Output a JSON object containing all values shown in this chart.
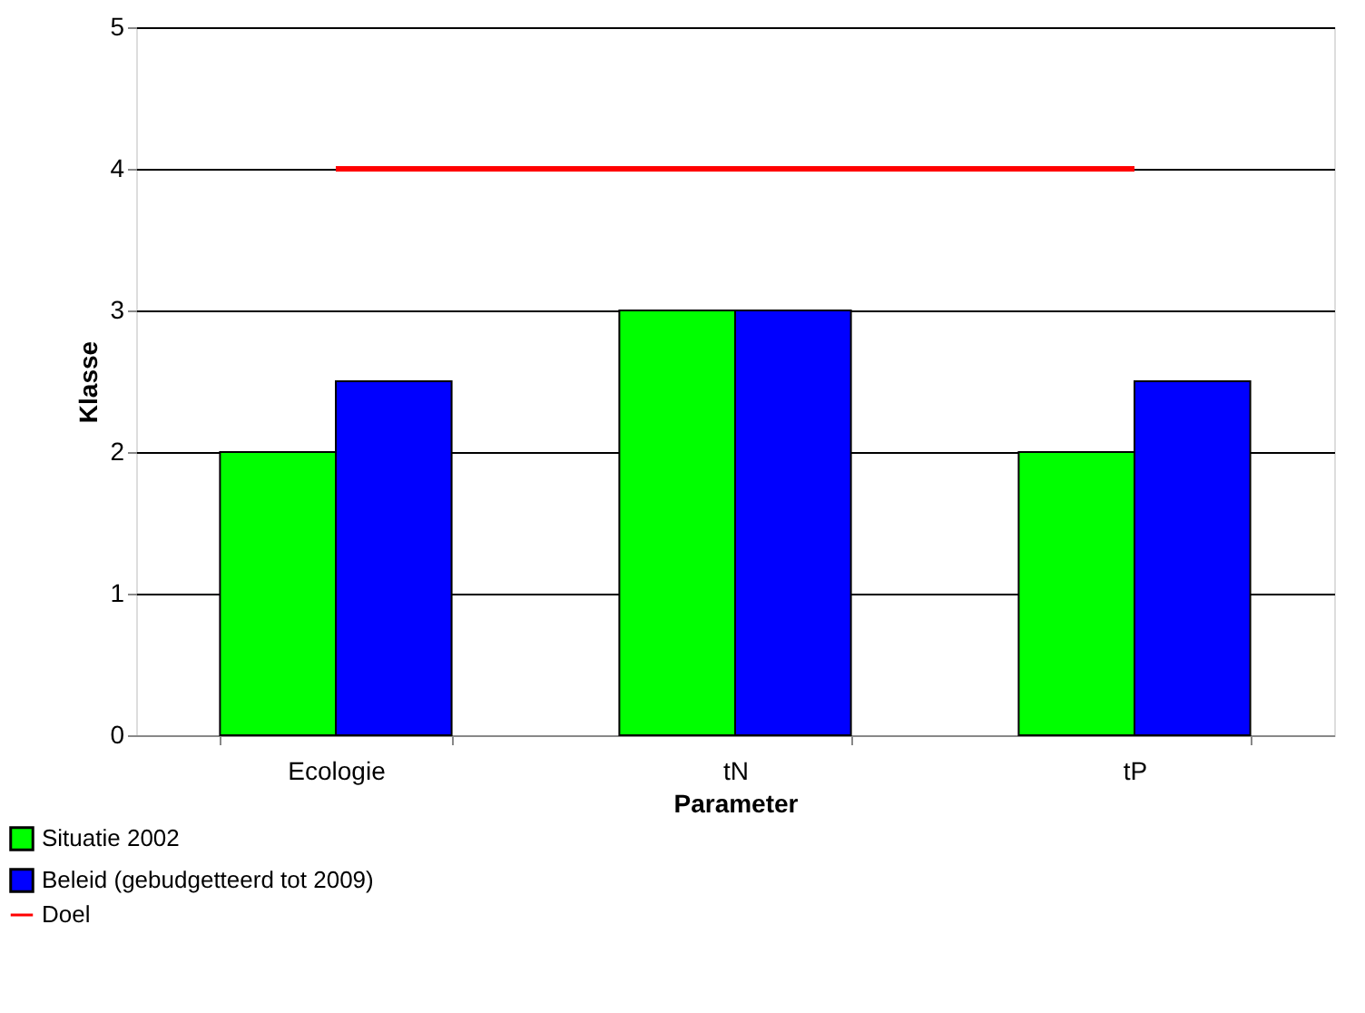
{
  "chart_data": {
    "type": "bar",
    "xlabel": "Parameter",
    "ylabel": "Klasse",
    "categories": [
      "Ecologie",
      "tN",
      "tP"
    ],
    "series": [
      {
        "name": "Situatie 2002",
        "color": "#00ff00",
        "values": [
          2,
          3,
          2
        ]
      },
      {
        "name": "Beleid (gebudgetteerd tot 2009)",
        "color": "#0000ff",
        "values": [
          2.5,
          3,
          2.5
        ]
      },
      {
        "name": "Doel",
        "type": "line",
        "color": "#ff0000",
        "values": [
          4,
          4,
          4
        ]
      }
    ],
    "ylim": [
      0,
      5
    ],
    "yticks": [
      0,
      1,
      2,
      3,
      4,
      5
    ],
    "grid": "y",
    "legend": "bottom left",
    "marker": "none"
  }
}
